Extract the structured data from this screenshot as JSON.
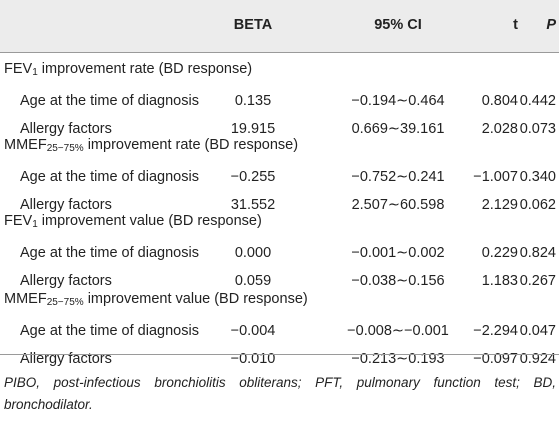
{
  "table": {
    "headers": {
      "beta": "BETA",
      "ci": "95% CI",
      "t": "t",
      "p": "P"
    },
    "sections": [
      {
        "title_pre": "FEV",
        "title_sub": "1",
        "title_post": " improvement rate (BD response)",
        "rows": [
          {
            "label": "Age at the time of diagnosis",
            "beta": "0.135",
            "ci": "−0.194∼0.464",
            "t": "0.804",
            "p": "0.442"
          },
          {
            "label": "Allergy factors",
            "beta": "19.915",
            "ci": "0.669∼39.161",
            "t": "2.028",
            "p": "0.073"
          }
        ]
      },
      {
        "title_pre": "MMEF",
        "title_sub": "25−75%",
        "title_post": " improvement rate (BD response)",
        "rows": [
          {
            "label": "Age at the time of diagnosis",
            "beta": "−0.255",
            "ci": "−0.752∼0.241",
            "t": "−1.007",
            "p": "0.340"
          },
          {
            "label": "Allergy factors",
            "beta": "31.552",
            "ci": "2.507∼60.598",
            "t": "2.129",
            "p": "0.062"
          }
        ]
      },
      {
        "title_pre": "FEV",
        "title_sub": "1",
        "title_post": " improvement value (BD response)",
        "rows": [
          {
            "label": "Age at the time of diagnosis",
            "beta": "0.000",
            "ci": "−0.001∼0.002",
            "t": "0.229",
            "p": "0.824"
          },
          {
            "label": "Allergy factors",
            "beta": "0.059",
            "ci": "−0.038∼0.156",
            "t": "1.183",
            "p": "0.267"
          }
        ]
      },
      {
        "title_pre": "MMEF",
        "title_sub": "25−75%",
        "title_post": " improvement value (BD response)",
        "rows": [
          {
            "label": "Age at the time of diagnosis",
            "beta": "−0.004",
            "ci": "−0.008∼−0.001",
            "t": "−2.294",
            "p": "0.047"
          },
          {
            "label": "Allergy factors",
            "beta": "−0.010",
            "ci": "−0.213∼0.193",
            "t": "−0.097",
            "p": "0.924"
          }
        ]
      }
    ]
  },
  "footnote": "PIBO, post-infectious bronchiolitis obliterans; PFT, pulmonary function test; BD, bronchodilator.",
  "colors": {
    "header_band": "#ececec",
    "rule": "#9a9a9a",
    "text": "#222222"
  }
}
